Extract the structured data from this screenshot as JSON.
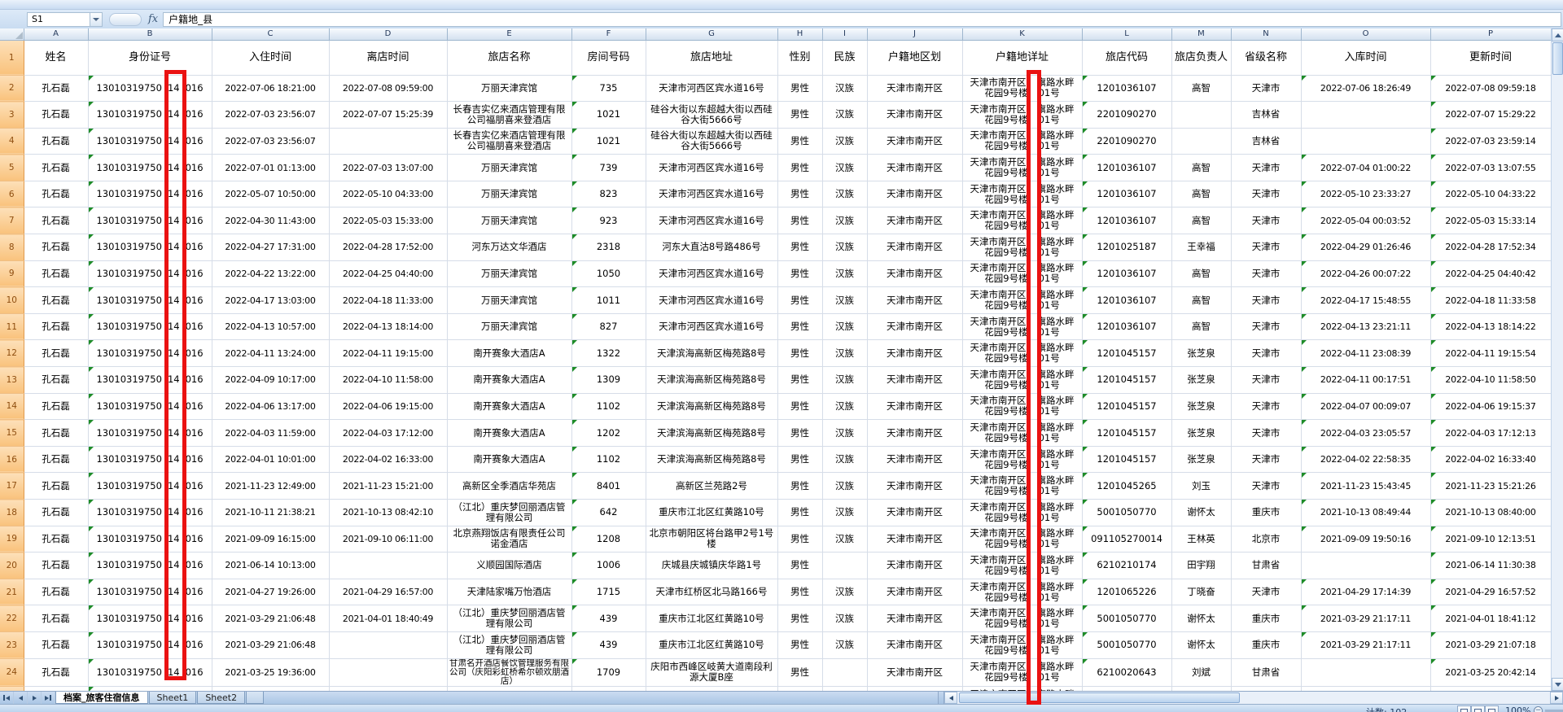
{
  "formula_bar": {
    "name_box_value": "S1",
    "fx_label": "fx",
    "formula_value": "户籍地_县"
  },
  "grid": {
    "column_letters": [
      "A",
      "B",
      "C",
      "D",
      "E",
      "F",
      "G",
      "H",
      "I",
      "J",
      "K",
      "L",
      "M",
      "N",
      "O",
      "P"
    ],
    "headers": [
      "姓名",
      "身份证号",
      "入住时间",
      "离店时间",
      "旅店名称",
      "房间号码",
      "旅店地址",
      "性别",
      "民族",
      "户籍地区划",
      "户籍地详址",
      "旅店代码",
      "旅店负责人",
      "省级名称",
      "入库时间",
      "更新时间"
    ],
    "constants": {
      "name": "孔石磊",
      "id_prefix": "13010319750",
      "id_mid": "14",
      "id_suffix": "016",
      "gender": "男性",
      "region": "天津市南开区",
      "hukou_line1_a": "天津市南开区",
      "hukou_line1_b": "旗路水畔",
      "hukou_line2_a": "花园9号楼",
      "hukou_line2_b": "01号"
    },
    "rows": [
      [
        "2022-07-06 18:21:00",
        "2022-07-08 09:59:00",
        "万丽天津宾馆",
        "735",
        "天津市河西区宾水道16号",
        "汉族",
        "1201036107",
        "高智",
        "天津市",
        "2022-07-06 18:26:49",
        "2022-07-08 09:59:18"
      ],
      [
        "2022-07-03 23:56:07",
        "2022-07-07 15:25:39",
        "长春吉实亿来酒店管理有限公司福朋喜来登酒店",
        "1021",
        "硅谷大街以东超越大街以西硅谷大街5666号",
        "汉族",
        "2201090270",
        "",
        "吉林省",
        "",
        "2022-07-07 15:29:22"
      ],
      [
        "2022-07-03 23:56:07",
        "",
        "长春吉实亿来酒店管理有限公司福朋喜来登酒店",
        "1021",
        "硅谷大街以东超越大街以西硅谷大街5666号",
        "汉族",
        "2201090270",
        "",
        "吉林省",
        "",
        "2022-07-03 23:59:14"
      ],
      [
        "2022-07-01 01:13:00",
        "2022-07-03 13:07:00",
        "万丽天津宾馆",
        "739",
        "天津市河西区宾水道16号",
        "汉族",
        "1201036107",
        "高智",
        "天津市",
        "2022-07-04 01:00:22",
        "2022-07-03 13:07:55"
      ],
      [
        "2022-05-07 10:50:00",
        "2022-05-10 04:33:00",
        "万丽天津宾馆",
        "823",
        "天津市河西区宾水道16号",
        "汉族",
        "1201036107",
        "高智",
        "天津市",
        "2022-05-10 23:33:27",
        "2022-05-10 04:33:22"
      ],
      [
        "2022-04-30 11:43:00",
        "2022-05-03 15:33:00",
        "万丽天津宾馆",
        "923",
        "天津市河西区宾水道16号",
        "汉族",
        "1201036107",
        "高智",
        "天津市",
        "2022-05-04 00:03:52",
        "2022-05-03 15:33:14"
      ],
      [
        "2022-04-27 17:31:00",
        "2022-04-28 17:52:00",
        "河东万达文华酒店",
        "2318",
        "河东大直沽8号路486号",
        "汉族",
        "1201025187",
        "王幸福",
        "天津市",
        "2022-04-29 01:26:46",
        "2022-04-28 17:52:34"
      ],
      [
        "2022-04-22 13:22:00",
        "2022-04-25 04:40:00",
        "万丽天津宾馆",
        "1050",
        "天津市河西区宾水道16号",
        "汉族",
        "1201036107",
        "高智",
        "天津市",
        "2022-04-26 00:07:22",
        "2022-04-25 04:40:42"
      ],
      [
        "2022-04-17 13:03:00",
        "2022-04-18 11:33:00",
        "万丽天津宾馆",
        "1011",
        "天津市河西区宾水道16号",
        "汉族",
        "1201036107",
        "高智",
        "天津市",
        "2022-04-17 15:48:55",
        "2022-04-18 11:33:58"
      ],
      [
        "2022-04-13 10:57:00",
        "2022-04-13 18:14:00",
        "万丽天津宾馆",
        "827",
        "天津市河西区宾水道16号",
        "汉族",
        "1201036107",
        "高智",
        "天津市",
        "2022-04-13 23:21:11",
        "2022-04-13 18:14:22"
      ],
      [
        "2022-04-11 13:24:00",
        "2022-04-11 19:15:00",
        "南开赛象大酒店A",
        "1322",
        "天津滨海高新区梅苑路8号",
        "汉族",
        "1201045157",
        "张芝泉",
        "天津市",
        "2022-04-11 23:08:39",
        "2022-04-11 19:15:54"
      ],
      [
        "2022-04-09 10:17:00",
        "2022-04-10 11:58:00",
        "南开赛象大酒店A",
        "1309",
        "天津滨海高新区梅苑路8号",
        "汉族",
        "1201045157",
        "张芝泉",
        "天津市",
        "2022-04-11 00:17:51",
        "2022-04-10 11:58:50"
      ],
      [
        "2022-04-06 13:17:00",
        "2022-04-06 19:15:00",
        "南开赛象大酒店A",
        "1102",
        "天津滨海高新区梅苑路8号",
        "汉族",
        "1201045157",
        "张芝泉",
        "天津市",
        "2022-04-07 00:09:07",
        "2022-04-06 19:15:37"
      ],
      [
        "2022-04-03 11:59:00",
        "2022-04-03 17:12:00",
        "南开赛象大酒店A",
        "1202",
        "天津滨海高新区梅苑路8号",
        "汉族",
        "1201045157",
        "张芝泉",
        "天津市",
        "2022-04-03 23:05:57",
        "2022-04-03 17:12:13"
      ],
      [
        "2022-04-01 10:01:00",
        "2022-04-02 16:33:00",
        "南开赛象大酒店A",
        "1102",
        "天津滨海高新区梅苑路8号",
        "汉族",
        "1201045157",
        "张芝泉",
        "天津市",
        "2022-04-02 22:58:35",
        "2022-04-02 16:33:40"
      ],
      [
        "2021-11-23 12:49:00",
        "2021-11-23 15:21:00",
        "高新区全季酒店华苑店",
        "8401",
        "高新区兰苑路2号",
        "汉族",
        "1201045265",
        "刘玉",
        "天津市",
        "2021-11-23 15:43:45",
        "2021-11-23 15:21:26"
      ],
      [
        "2021-10-11 21:38:21",
        "2021-10-13 08:42:10",
        "（江北）重庆梦回丽酒店管理有限公司",
        "642",
        "重庆市江北区红黄路10号",
        "汉族",
        "5001050770",
        "谢怀太",
        "重庆市",
        "2021-10-13 08:49:44",
        "2021-10-13 08:40:00"
      ],
      [
        "2021-09-09 16:15:00",
        "2021-09-10 06:11:00",
        "北京燕翔饭店有限责任公司诺金酒店",
        "1208",
        "北京市朝阳区将台路甲2号1号楼",
        "汉族",
        "091105270014",
        "王林英",
        "北京市",
        "2021-09-09 19:50:16",
        "2021-09-10 12:13:51"
      ],
      [
        "2021-06-14 10:13:00",
        "",
        "义顺园国际酒店",
        "1006",
        "庆城县庆城镇庆华路1号",
        "",
        "6210210174",
        "田宇翔",
        "甘肃省",
        "",
        "2021-06-14 11:30:38"
      ],
      [
        "2021-04-27 19:26:00",
        "2021-04-29 16:57:00",
        "天津陆家嘴万怡酒店",
        "1715",
        "天津市红桥区北马路166号",
        "汉族",
        "1201065226",
        "丁晓奋",
        "天津市",
        "2021-04-29 17:14:39",
        "2021-04-29 16:57:52"
      ],
      [
        "2021-03-29 21:06:48",
        "2021-04-01 18:40:49",
        "（江北）重庆梦回丽酒店管理有限公司",
        "439",
        "重庆市江北区红黄路10号",
        "汉族",
        "5001050770",
        "谢怀太",
        "重庆市",
        "2021-03-29 21:17:11",
        "2021-04-01 18:41:12"
      ],
      [
        "2021-03-29 21:06:48",
        "",
        "（江北）重庆梦回丽酒店管理有限公司",
        "439",
        "重庆市江北区红黄路10号",
        "汉族",
        "5001050770",
        "谢怀太",
        "重庆市",
        "2021-03-29 21:17:11",
        "2021-03-29 21:07:18"
      ],
      [
        "2021-03-25 19:36:00",
        "",
        "甘肃名开酒店餐饮管理服务有限公司（庆阳彩虹桥希尔顿欢朋酒店）",
        "1709",
        "庆阳市西峰区岐黄大道南段利源大厦B座",
        "",
        "6210020643",
        "刘斌",
        "甘肃省",
        "",
        "2021-03-25 20:42:14"
      ]
    ]
  },
  "annotations": {
    "redaction_color": "#EA1212"
  },
  "tabs": {
    "items": [
      "档案_旅客住宿信息",
      "Sheet1",
      "Sheet2"
    ],
    "active_index": 0
  },
  "status": {
    "count_label": "计数: 102",
    "zoom_label": "100%"
  }
}
